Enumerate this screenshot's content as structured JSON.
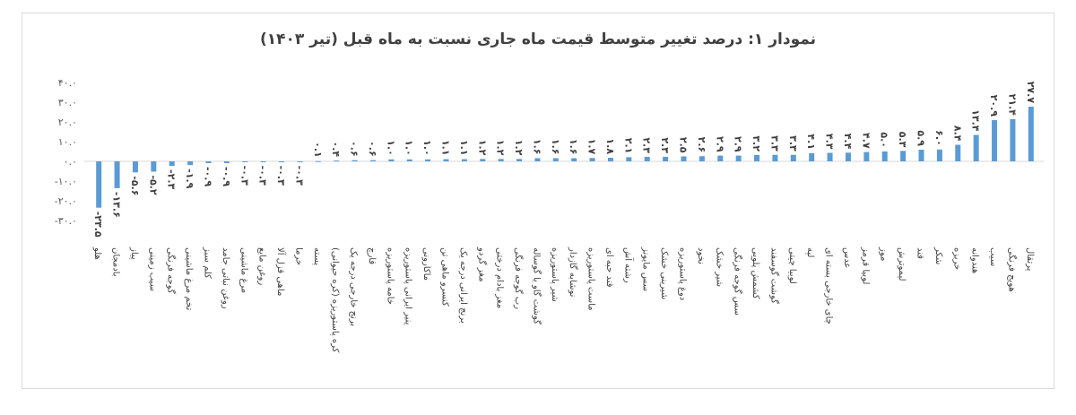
{
  "chart_data": {
    "type": "bar",
    "title": "نمودار ۱: درصد تغییر متوسط قیمت ماه جاری نسبت به ماه قبل (تیر ۱۴۰۳)",
    "xlabel": "",
    "ylabel": "",
    "ylim": [
      -30,
      40
    ],
    "yticks": [
      -30,
      -20,
      -10,
      0,
      10,
      20,
      30,
      40
    ],
    "ytick_labels": [
      "-۳۰.۰",
      "-۲۰.۰",
      "-۱۰.۰",
      "۰.۰",
      "۱۰.۰",
      "۲۰.۰",
      "۳۰.۰",
      "۴۰.۰"
    ],
    "grid": false,
    "legend": "none",
    "bar_color": "#5b9bd5",
    "categories": [
      "پرتقال",
      "هویج فرنگی",
      "سیب",
      "هندوانه",
      "خربزه",
      "شکر",
      "قند",
      "لیموترش",
      "موز",
      "لوبیا قرمز",
      "عدس",
      "چای خارجی بسته ای",
      "لپه",
      "لوبیا چیتی",
      "گوشت گوسفند",
      "کشمش پلویی",
      "سس گوجه فرنگی",
      "شیر خشک",
      "نخود",
      "دوغ پاستوریزه",
      "شیرینی خشک",
      "سس مایونز",
      "رشته آش",
      "قند حبه ای",
      "ماست پاستوریزه",
      "نوشابه گازدار",
      "شیر پاستوریزه",
      "گوشت گاو یا گوساله",
      "رب گوجه فرنگی",
      "مغز بادام درختی",
      "مغز گردو",
      "برنج ایرانی درجه یک",
      "کنسرو ماهی تن",
      "ماکارونی",
      "پنیر ایرانی پاستوریزه",
      "خامه پاستوریزه",
      "قارچ",
      "برنج خارجی درجه یک",
      "کره پاستوریزه (کره حیوانی)",
      "پسته",
      "خرما",
      "ماهی قزل آلا",
      "روغن مایع",
      "مرغ ماشینی",
      "روغن نباتی جامد",
      "کلم سبز",
      "تخم مرغ ماشینی",
      "گوجه فرنگی",
      "سیب زمینی",
      "پیاز",
      "بادمجان",
      "هلو"
    ],
    "values": [
      27.7,
      21.4,
      20.9,
      13.4,
      8.4,
      6.0,
      5.9,
      5.3,
      5.0,
      4.7,
      4.4,
      4.3,
      4.1,
      3.3,
      3.3,
      3.2,
      2.9,
      2.9,
      2.6,
      2.5,
      2.3,
      2.3,
      2.1,
      1.8,
      1.7,
      1.6,
      1.6,
      1.6,
      1.2,
      1.2,
      1.2,
      1.1,
      1.1,
      1.0,
      1.0,
      1.0,
      0.6,
      0.6,
      0.4,
      0.1,
      -0.3,
      -0.3,
      -0.3,
      -0.3,
      -0.9,
      -0.9,
      -1.9,
      -2.3,
      -5.2,
      -5.6,
      -13.6,
      -23.5
    ],
    "value_labels": [
      "۲۷.۷",
      "۲۱.۴",
      "۲۰.۹",
      "۱۳.۴",
      "۸.۴",
      "۶.۰",
      "۵.۹",
      "۵.۳",
      "۵.۰",
      "۴.۷",
      "۴.۴",
      "۴.۳",
      "۴.۱",
      "۳.۳",
      "۳.۳",
      "۳.۲",
      "۲.۹",
      "۲.۹",
      "۲.۶",
      "۲.۵",
      "۲.۳",
      "۲.۳",
      "۲.۱",
      "۱.۸",
      "۱.۷",
      "۱.۶",
      "۱.۶",
      "۱.۶",
      "۱.۲",
      "۱.۲",
      "۱.۲",
      "۱.۱",
      "۱.۱",
      "۱.۰",
      "۱.۰",
      "۱.۰",
      "۰.۶",
      "۰.۶",
      "۰.۴",
      "۰.۱",
      "-۰.۳",
      "-۰.۳",
      "-۰.۳",
      "-۰.۳",
      "-۰.۹",
      "-۰.۹",
      "-۱.۹",
      "-۲.۳",
      "-۵.۲",
      "-۵.۶",
      "-۱۳.۶",
      "-۲۳.۵"
    ]
  }
}
